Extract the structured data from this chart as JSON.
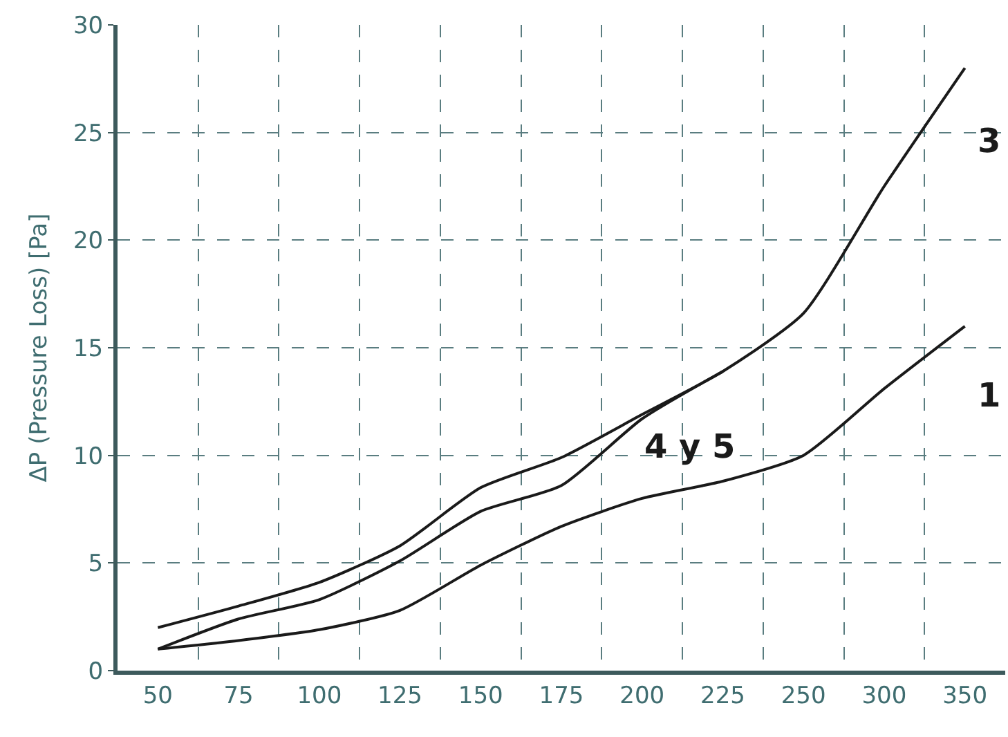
{
  "chart_data": {
    "type": "line",
    "ylabel": "ΔP (Pressure Loss) [Pa]",
    "categories": [
      "50",
      "75",
      "100",
      "125",
      "150",
      "175",
      "200",
      "225",
      "250",
      "300",
      "350"
    ],
    "ylim": [
      0,
      30
    ],
    "yticks": [
      0,
      5,
      10,
      15,
      20,
      25,
      30
    ],
    "grid": true,
    "legend": false,
    "marker": "none",
    "line_style": "solid",
    "series": [
      {
        "name": "3",
        "color": "#1a1a1a",
        "values": [
          2.0,
          3.0,
          4.1,
          5.8,
          8.5,
          9.9,
          11.9,
          13.9,
          16.6,
          22.5,
          28.0
        ]
      },
      {
        "name": "1",
        "color": "#1a1a1a",
        "values": [
          1.0,
          1.4,
          1.9,
          2.8,
          4.9,
          6.7,
          8.0,
          8.8,
          10.0,
          13.1,
          16.0
        ]
      },
      {
        "name": "4 y 5",
        "color": "#1a1a1a",
        "values": [
          1.0,
          2.4,
          3.3,
          5.1,
          7.4,
          8.6,
          11.7,
          13.9,
          null,
          null,
          null
        ]
      }
    ]
  }
}
